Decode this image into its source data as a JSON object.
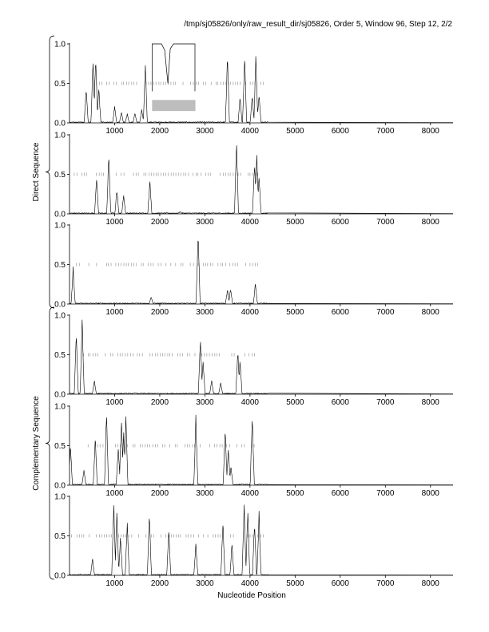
{
  "header": {
    "title": "/tmp/sj05826/only/raw_result_dir/sj05826, Order 5, Window 96, Step 12, 2/2"
  },
  "chart_data": {
    "type": "line",
    "xlabel": "Nucleotide Position",
    "xlim": [
      0,
      8500
    ],
    "ylim": [
      0,
      1
    ],
    "x_ticks": [
      1000,
      2000,
      3000,
      4000,
      5000,
      6000,
      7000,
      8000
    ],
    "y_ticks": [
      0.0,
      0.5,
      1.0
    ],
    "y_tick_labels": [
      "0.0",
      "0.5",
      "1.0"
    ],
    "groups": [
      {
        "label": "Direct Sequence",
        "panels": [
          0,
          1,
          2
        ]
      },
      {
        "label": "Complementary Sequence",
        "panels": [
          3,
          4,
          5
        ]
      }
    ],
    "panels": [
      {
        "name": "direct-frame-1",
        "peaks": [
          [
            370,
            0.47
          ],
          [
            520,
            0.82
          ],
          [
            580,
            0.9
          ],
          [
            650,
            0.45
          ],
          [
            1000,
            0.22
          ],
          [
            1150,
            0.14
          ],
          [
            1280,
            0.12
          ],
          [
            1450,
            0.13
          ],
          [
            1600,
            0.18
          ],
          [
            1680,
            0.75
          ],
          [
            3500,
            0.88
          ],
          [
            3780,
            0.35
          ],
          [
            3880,
            0.92
          ],
          [
            4050,
            0.38
          ],
          [
            4130,
            0.91
          ],
          [
            4200,
            0.38
          ]
        ],
        "ticks_range": [
          600,
          4300
        ],
        "inset": {
          "x_range": [
            1830,
            2780
          ],
          "y_top": 1.0,
          "y_bottom": 0.4,
          "peak_x": 2180,
          "peak_y": 0.98
        },
        "gray_bar": {
          "x_range": [
            1830,
            2790
          ],
          "y_range": [
            0.15,
            0.29
          ]
        }
      },
      {
        "name": "direct-frame-2",
        "peaks": [
          [
            600,
            0.48
          ],
          [
            870,
            0.8
          ],
          [
            1050,
            0.33
          ],
          [
            1200,
            0.25
          ],
          [
            1780,
            0.45
          ],
          [
            2450,
            0.03
          ],
          [
            3700,
            0.97
          ],
          [
            4100,
            0.68
          ],
          [
            4150,
            0.78
          ],
          [
            4200,
            0.5
          ]
        ],
        "ticks_range": [
          50,
          4300
        ]
      },
      {
        "name": "direct-frame-3",
        "peaks": [
          [
            80,
            0.48
          ],
          [
            1810,
            0.1
          ],
          [
            2850,
            0.97
          ],
          [
            3500,
            0.19
          ],
          [
            3570,
            0.21
          ],
          [
            4120,
            0.28
          ]
        ],
        "ticks_range": [
          100,
          4250
        ]
      },
      {
        "name": "complementary-frame-1",
        "peaks": [
          [
            150,
            0.8
          ],
          [
            280,
            0.98
          ],
          [
            550,
            0.18
          ],
          [
            1450,
            0.02
          ],
          [
            2900,
            0.75
          ],
          [
            2960,
            0.45
          ],
          [
            3150,
            0.18
          ],
          [
            3350,
            0.16
          ],
          [
            3730,
            0.58
          ],
          [
            3780,
            0.45
          ]
        ],
        "ticks_range": [
          300,
          4150
        ]
      },
      {
        "name": "complementary-frame-2",
        "peaks": [
          [
            20,
            0.52
          ],
          [
            320,
            0.2
          ],
          [
            570,
            0.63
          ],
          [
            820,
            0.97
          ],
          [
            1080,
            0.52
          ],
          [
            1150,
            0.88
          ],
          [
            1200,
            0.7
          ],
          [
            1250,
            0.92
          ],
          [
            2800,
            0.9
          ],
          [
            3450,
            0.78
          ],
          [
            3520,
            0.48
          ],
          [
            3580,
            0.25
          ],
          [
            4050,
            0.97
          ]
        ],
        "ticks_range": [
          300,
          4100
        ]
      },
      {
        "name": "complementary-frame-3",
        "peaks": [
          [
            510,
            0.22
          ],
          [
            980,
            0.98
          ],
          [
            1050,
            0.85
          ],
          [
            1130,
            0.5
          ],
          [
            1280,
            0.72
          ],
          [
            1770,
            0.87
          ],
          [
            2200,
            0.62
          ],
          [
            2800,
            0.42
          ],
          [
            3400,
            0.72
          ],
          [
            3600,
            0.42
          ],
          [
            3870,
            0.95
          ],
          [
            3950,
            0.85
          ],
          [
            4100,
            0.72
          ],
          [
            4200,
            0.82
          ]
        ],
        "ticks_range": [
          50,
          4300
        ]
      }
    ]
  }
}
